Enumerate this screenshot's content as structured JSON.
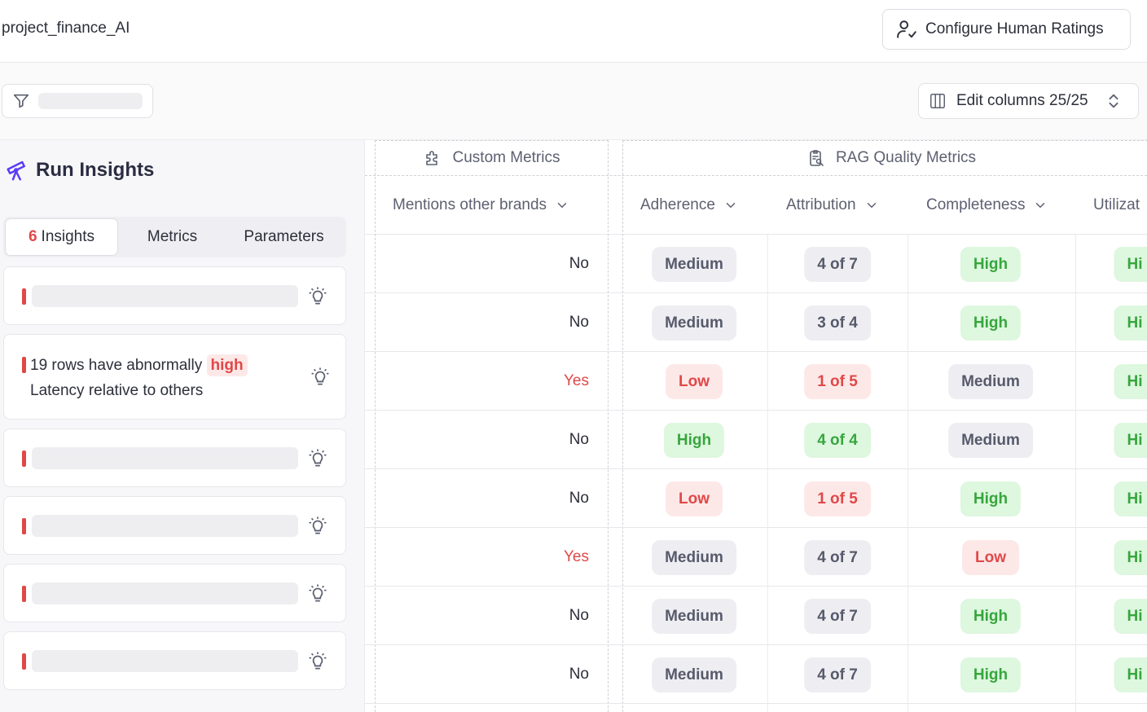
{
  "header": {
    "project_name": "project_finance_AI",
    "configure_button": "Configure Human Ratings",
    "configure_icon": "user-check-icon"
  },
  "toolbar": {
    "filter_icon": "filter-icon",
    "edit_columns": "Edit columns 25/25"
  },
  "insights_panel": {
    "title": "Run Insights",
    "tabs": [
      {
        "count": "6",
        "label": "Insights"
      },
      {
        "label": "Metrics"
      },
      {
        "label": "Parameters"
      }
    ],
    "insight_text_before": "19 rows have abnormally",
    "insight_highlight": "high",
    "insight_text_after": "Latency relative to others"
  },
  "table": {
    "groups": {
      "custom": "Custom Metrics",
      "rag": "RAG Quality Metrics"
    },
    "columns": [
      "Mentions other brands",
      "Adherence",
      "Attribution",
      "Completeness",
      "Utilizat"
    ],
    "rows": [
      {
        "brands": "No",
        "adherence": "Medium",
        "attribution": "4 of 7",
        "completeness": "High",
        "util": "Hi"
      },
      {
        "brands": "No",
        "adherence": "Medium",
        "attribution": "3 of 4",
        "completeness": "High",
        "util": "Hi"
      },
      {
        "brands": "Yes",
        "adherence": "Low",
        "attribution": "1 of 5",
        "completeness": "Medium",
        "util": "Hi"
      },
      {
        "brands": "No",
        "adherence": "High",
        "attribution": "4 of 4",
        "completeness": "Medium",
        "util": "Hi"
      },
      {
        "brands": "No",
        "adherence": "Low",
        "attribution": "1 of 5",
        "completeness": "High",
        "util": "Hi"
      },
      {
        "brands": "Yes",
        "adherence": "Medium",
        "attribution": "4 of 7",
        "completeness": "Low",
        "util": "Hi"
      },
      {
        "brands": "No",
        "adherence": "Medium",
        "attribution": "4 of 7",
        "completeness": "High",
        "util": "Hi"
      },
      {
        "brands": "No",
        "adherence": "Medium",
        "attribution": "4 of 7",
        "completeness": "High",
        "util": "Hi"
      }
    ]
  },
  "colors": {
    "accent_red": "#e04848",
    "good_green": "#37a63e",
    "good_bg": "#def7df",
    "bad_bg": "#fde8e8",
    "neutral_bg": "#eeeef2",
    "brand_purple": "#5b3df5"
  }
}
